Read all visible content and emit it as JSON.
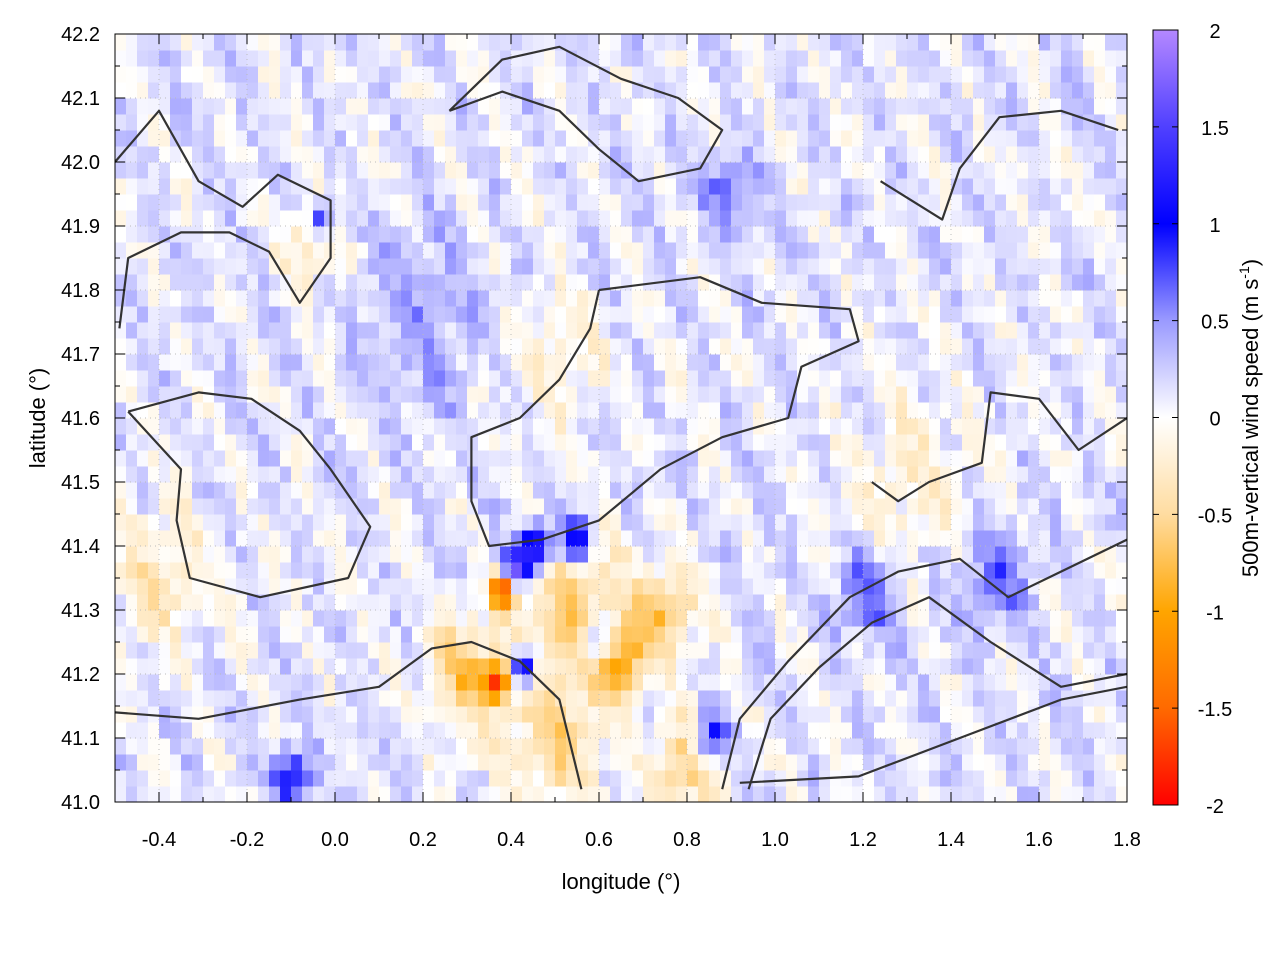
{
  "chart_data": {
    "type": "heatmap",
    "xlabel": "longitude (°)",
    "ylabel": "latitude (°)",
    "colorbar_label": "500m-vertical wind speed (m s",
    "colorbar_label_sup": "-1",
    "colorbar_label_end": ")",
    "xlim": [
      -0.5,
      1.8
    ],
    "ylim": [
      41.0,
      42.2
    ],
    "xticks": [
      "-0.4",
      "-0.2",
      "0.0",
      "0.2",
      "0.4",
      "0.6",
      "0.8",
      "1.0",
      "1.2",
      "1.4",
      "1.6",
      "1.8"
    ],
    "yticks": [
      "41.0",
      "41.1",
      "41.2",
      "41.3",
      "41.4",
      "41.5",
      "41.6",
      "41.7",
      "41.8",
      "41.9",
      "42.0",
      "42.1",
      "42.2"
    ],
    "colorbar_range": [
      -2,
      2
    ],
    "colorbar_ticks": [
      "-2",
      "-1.5",
      "-1",
      "-0.5",
      "0",
      "0.5",
      "1",
      "1.5",
      "2"
    ],
    "colorscale": [
      {
        "v": -2,
        "color": "#ff0000"
      },
      {
        "v": -1.5,
        "color": "#ff6a00"
      },
      {
        "v": -1,
        "color": "#ffa500"
      },
      {
        "v": -0.5,
        "color": "#ffdca0"
      },
      {
        "v": 0,
        "color": "#ffffff"
      },
      {
        "v": 0.5,
        "color": "#9a9aff"
      },
      {
        "v": 1,
        "color": "#0000ff"
      },
      {
        "v": 1.5,
        "color": "#5040ff"
      },
      {
        "v": 2,
        "color": "#b488ff"
      }
    ],
    "grid": true,
    "grid_resolution_deg": 0.025,
    "hotspots": [
      {
        "lon": 0.38,
        "lat": 41.33,
        "value": -1.8,
        "spread": 0.02
      },
      {
        "lon": 0.41,
        "lat": 41.37,
        "value": 1.6,
        "spread": 0.02
      },
      {
        "lon": 0.46,
        "lat": 41.4,
        "value": 1.5,
        "spread": 0.025
      },
      {
        "lon": 0.55,
        "lat": 41.41,
        "value": 1.2,
        "spread": 0.025
      },
      {
        "lon": 0.43,
        "lat": 41.21,
        "value": 1.5,
        "spread": 0.02
      },
      {
        "lon": 0.37,
        "lat": 41.19,
        "value": -1.6,
        "spread": 0.02
      },
      {
        "lon": 0.3,
        "lat": 41.2,
        "value": -0.8,
        "spread": 0.06
      },
      {
        "lon": 0.55,
        "lat": 41.3,
        "value": -0.7,
        "spread": 0.08
      },
      {
        "lon": 0.5,
        "lat": 41.1,
        "value": -0.6,
        "spread": 0.08
      },
      {
        "lon": 0.65,
        "lat": 41.22,
        "value": -1.0,
        "spread": 0.04
      },
      {
        "lon": 0.6,
        "lat": 41.25,
        "value": 0.9,
        "spread": 0.03
      },
      {
        "lon": 0.75,
        "lat": 41.3,
        "value": -0.8,
        "spread": 0.05
      },
      {
        "lon": 0.8,
        "lat": 41.06,
        "value": -0.8,
        "spread": 0.05
      },
      {
        "lon": 0.85,
        "lat": 41.1,
        "value": 1.0,
        "spread": 0.03
      },
      {
        "lon": -0.05,
        "lat": 41.87,
        "value": -0.6,
        "spread": 0.04
      },
      {
        "lon": -0.03,
        "lat": 41.91,
        "value": 1.0,
        "spread": 0.02
      },
      {
        "lon": 0.5,
        "lat": 41.7,
        "value": -0.3,
        "spread": 0.08
      },
      {
        "lon": 1.3,
        "lat": 41.5,
        "value": -0.3,
        "spread": 0.1
      },
      {
        "lon": -0.1,
        "lat": 41.04,
        "value": 1.0,
        "spread": 0.03
      },
      {
        "lon": 0.2,
        "lat": 41.75,
        "value": 0.3,
        "spread": 0.1
      },
      {
        "lon": 1.2,
        "lat": 41.32,
        "value": 0.6,
        "spread": 0.05
      },
      {
        "lon": 0.9,
        "lat": 41.95,
        "value": 0.6,
        "spread": 0.04
      },
      {
        "lon": -0.4,
        "lat": 41.35,
        "value": -0.4,
        "spread": 0.08
      },
      {
        "lon": 1.5,
        "lat": 41.35,
        "value": 0.5,
        "spread": 0.06
      }
    ],
    "contours": [
      [
        [
          -0.5,
          42.0
        ],
        [
          -0.4,
          42.08
        ],
        [
          -0.31,
          41.97
        ],
        [
          -0.21,
          41.93
        ],
        [
          -0.13,
          41.98
        ],
        [
          -0.01,
          41.94
        ],
        [
          -0.01,
          41.85
        ],
        [
          -0.08,
          41.78
        ],
        [
          -0.15,
          41.86
        ],
        [
          -0.24,
          41.89
        ],
        [
          -0.35,
          41.89
        ],
        [
          -0.47,
          41.85
        ],
        [
          -0.49,
          41.74
        ]
      ],
      [
        [
          0.6,
          41.8
        ],
        [
          0.83,
          41.82
        ],
        [
          0.97,
          41.78
        ],
        [
          1.17,
          41.77
        ],
        [
          1.19,
          41.72
        ],
        [
          1.06,
          41.68
        ],
        [
          1.03,
          41.6
        ],
        [
          0.88,
          41.57
        ],
        [
          0.74,
          41.52
        ],
        [
          0.6,
          41.44
        ],
        [
          0.47,
          41.41
        ],
        [
          0.35,
          41.4
        ],
        [
          0.31,
          41.47
        ],
        [
          0.31,
          41.57
        ],
        [
          0.42,
          41.6
        ],
        [
          0.51,
          41.66
        ],
        [
          0.58,
          41.74
        ],
        [
          0.6,
          41.8
        ]
      ],
      [
        [
          0.88,
          41.02
        ],
        [
          0.92,
          41.13
        ],
        [
          1.03,
          41.22
        ],
        [
          1.17,
          41.32
        ],
        [
          1.28,
          41.36
        ],
        [
          1.42,
          41.38
        ],
        [
          1.53,
          41.32
        ],
        [
          1.65,
          41.36
        ],
        [
          1.8,
          41.41
        ]
      ],
      [
        [
          0.94,
          41.02
        ],
        [
          0.99,
          41.13
        ],
        [
          1.1,
          41.21
        ],
        [
          1.22,
          41.28
        ],
        [
          1.35,
          41.32
        ],
        [
          1.49,
          41.25
        ],
        [
          1.65,
          41.18
        ],
        [
          1.8,
          41.2
        ]
      ],
      [
        [
          0.92,
          41.03
        ],
        [
          1.19,
          41.04
        ],
        [
          1.42,
          41.1
        ],
        [
          1.65,
          41.16
        ],
        [
          1.8,
          41.18
        ]
      ],
      [
        [
          -0.5,
          41.14
        ],
        [
          -0.31,
          41.13
        ],
        [
          -0.08,
          41.16
        ],
        [
          0.1,
          41.18
        ],
        [
          0.22,
          41.24
        ],
        [
          0.31,
          41.25
        ],
        [
          0.42,
          41.22
        ],
        [
          0.51,
          41.16
        ],
        [
          0.56,
          41.02
        ]
      ],
      [
        [
          -0.47,
          41.61
        ],
        [
          -0.35,
          41.52
        ],
        [
          -0.36,
          41.44
        ],
        [
          -0.33,
          41.35
        ],
        [
          -0.17,
          41.32
        ],
        [
          0.03,
          41.35
        ],
        [
          0.08,
          41.43
        ],
        [
          -0.01,
          41.52
        ],
        [
          -0.08,
          41.58
        ],
        [
          -0.19,
          41.63
        ],
        [
          -0.31,
          41.64
        ],
        [
          -0.47,
          41.61
        ]
      ],
      [
        [
          1.24,
          41.97
        ],
        [
          1.38,
          41.91
        ],
        [
          1.42,
          41.99
        ],
        [
          1.51,
          42.07
        ],
        [
          1.65,
          42.08
        ],
        [
          1.78,
          42.05
        ]
      ],
      [
        [
          0.26,
          42.08
        ],
        [
          0.38,
          42.11
        ],
        [
          0.51,
          42.08
        ],
        [
          0.6,
          42.02
        ],
        [
          0.69,
          41.97
        ],
        [
          0.83,
          41.99
        ],
        [
          0.88,
          42.05
        ],
        [
          0.78,
          42.1
        ],
        [
          0.65,
          42.13
        ],
        [
          0.51,
          42.18
        ],
        [
          0.38,
          42.16
        ],
        [
          0.26,
          42.08
        ]
      ],
      [
        [
          1.8,
          41.6
        ],
        [
          1.69,
          41.55
        ],
        [
          1.6,
          41.63
        ],
        [
          1.49,
          41.64
        ],
        [
          1.47,
          41.53
        ],
        [
          1.35,
          41.5
        ],
        [
          1.28,
          41.47
        ],
        [
          1.22,
          41.5
        ]
      ]
    ]
  }
}
